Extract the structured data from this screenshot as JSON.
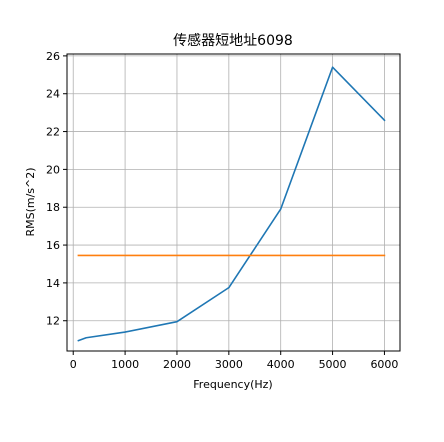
{
  "chart_data": {
    "type": "line",
    "title": "传感器短地址6098",
    "xlabel": "Frequency(Hz)",
    "ylabel": "RMS(m/s^2)",
    "xlim": [
      -120,
      6300
    ],
    "ylim": [
      10.4,
      26.1
    ],
    "xticks": [
      0,
      1000,
      2000,
      3000,
      4000,
      5000,
      6000
    ],
    "yticks": [
      12,
      14,
      16,
      18,
      20,
      22,
      24,
      26
    ],
    "grid": true,
    "series": [
      {
        "color": "#1f77b4",
        "x": [
          100,
          250,
          1000,
          2000,
          3000,
          4000,
          5000,
          6000
        ],
        "y": [
          10.95,
          11.1,
          11.4,
          11.95,
          13.75,
          17.9,
          25.4,
          22.6
        ]
      },
      {
        "color": "#ff7f0e",
        "x": [
          100,
          6000
        ],
        "y": [
          15.45,
          15.45
        ]
      }
    ]
  }
}
